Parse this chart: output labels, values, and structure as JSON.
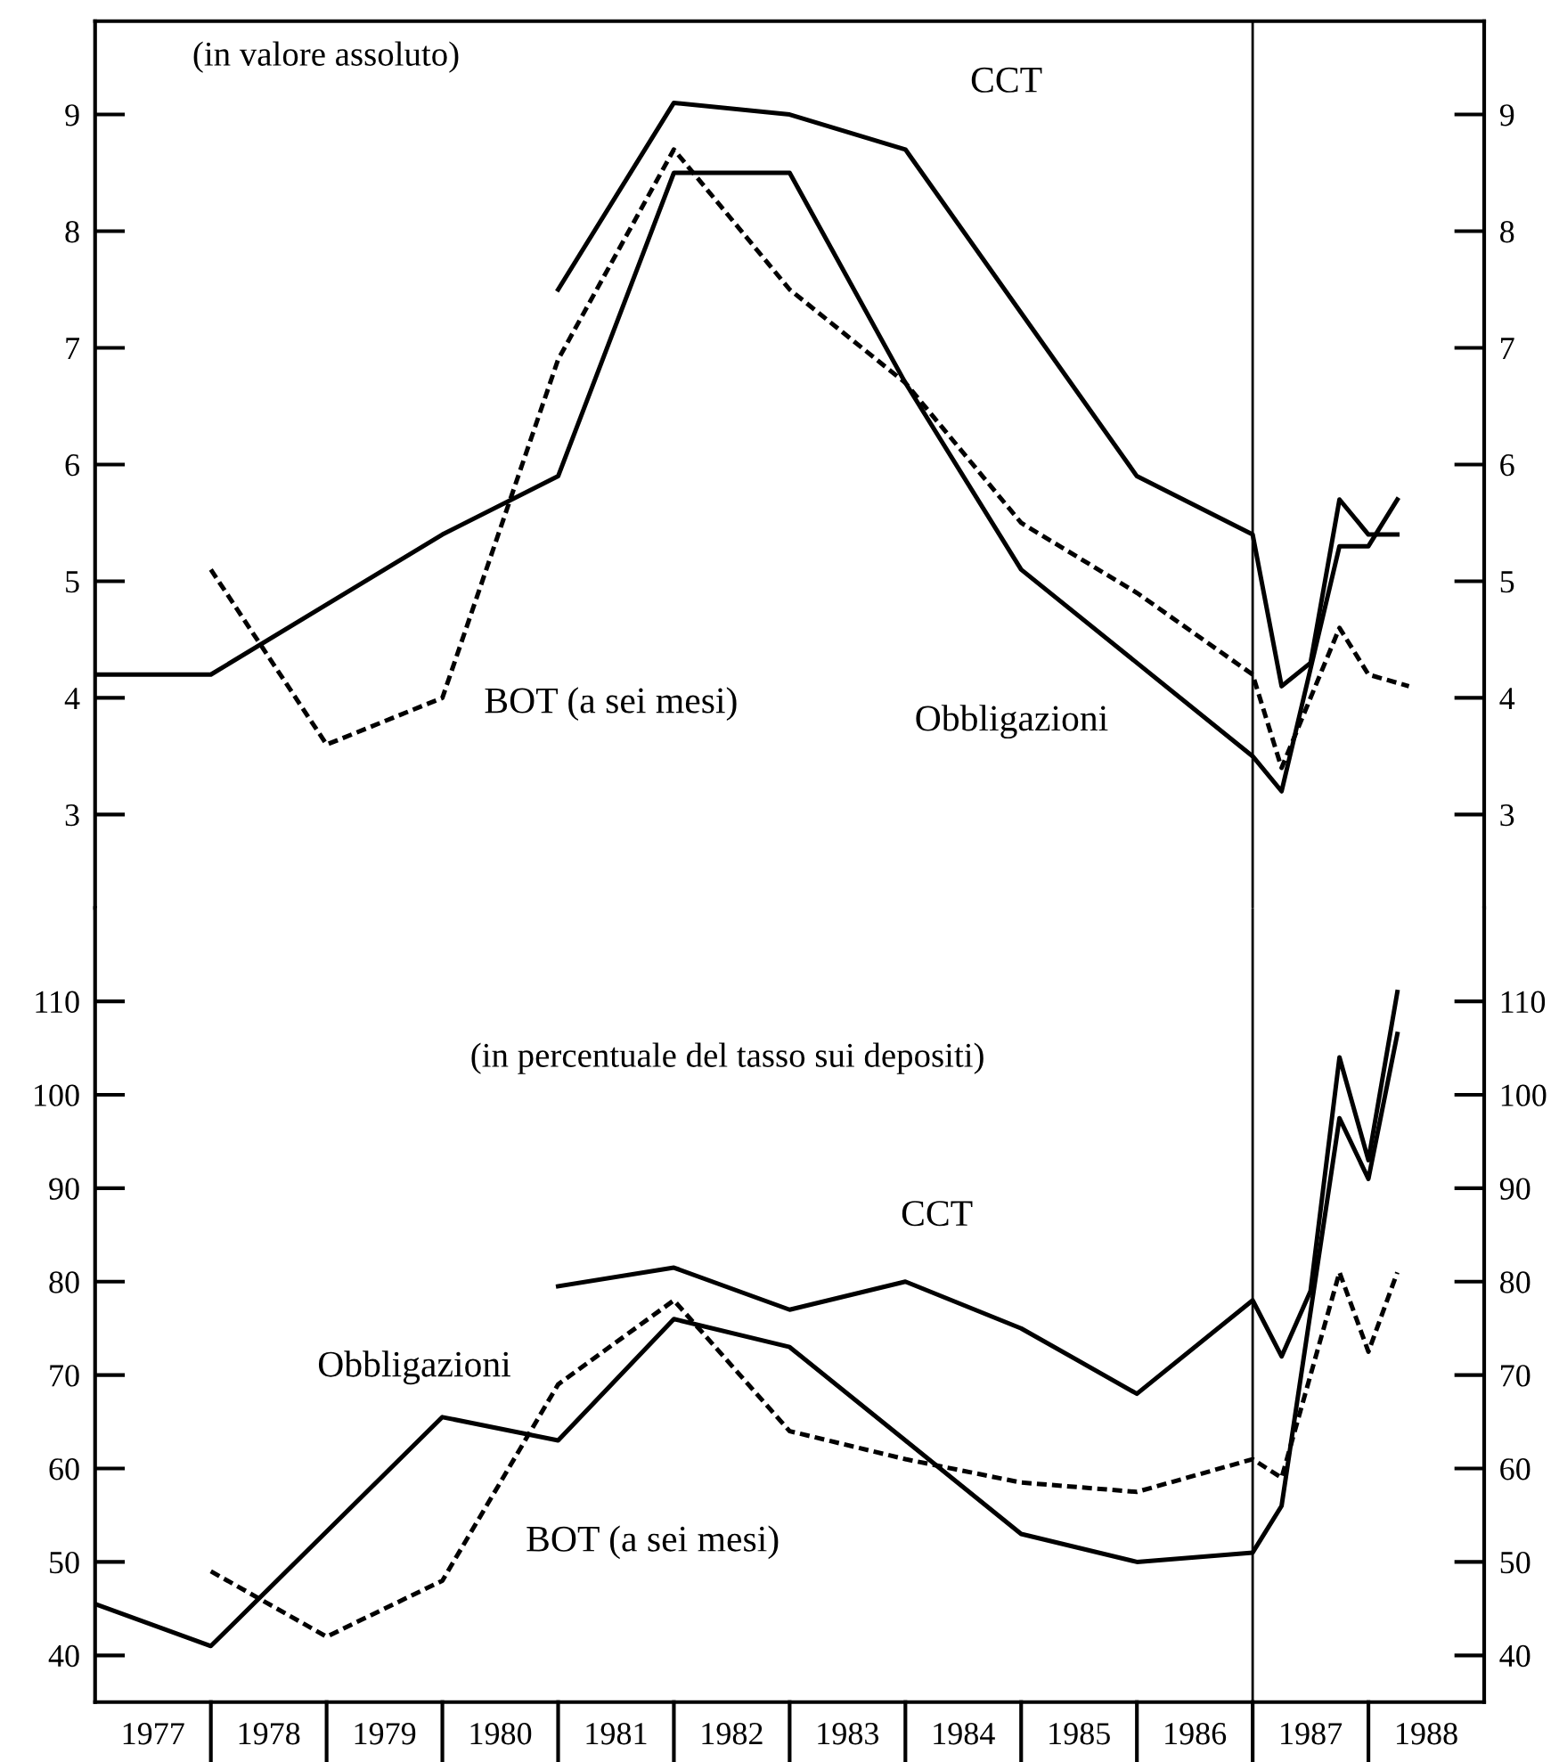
{
  "chart_data": [
    {
      "type": "line",
      "title": "(in valore assoluto)",
      "xlim": [
        1977,
        1989
      ],
      "ylim": [
        2.2,
        9.8
      ],
      "yticks": [
        3,
        4,
        5,
        6,
        7,
        8,
        9
      ],
      "y2lim": [
        2.2,
        9.8
      ],
      "y2ticks": [
        3,
        4,
        5,
        6,
        7,
        8,
        9
      ],
      "tick_labels": "y",
      "grid": false,
      "legend": false,
      "ref_lines": [
        {
          "axis": "x",
          "value": 1987,
          "color": "#000000",
          "line_style": "solid"
        }
      ],
      "series": [
        {
          "name": "CCT",
          "color": "#000000",
          "line_style": "solid",
          "x": [
            1981,
            1982,
            1983,
            1984,
            1985,
            1986,
            1987,
            1987.25,
            1987.5,
            1987.75,
            1988,
            1988.25
          ],
          "values": [
            7.5,
            9.1,
            9.0,
            8.7,
            7.3,
            5.9,
            5.4,
            4.1,
            4.3,
            5.7,
            5.4,
            5.4
          ]
        },
        {
          "name": "Obbligazioni",
          "color": "#000000",
          "line_style": "solid",
          "x": [
            1977,
            1978,
            1979,
            1980,
            1981,
            1982,
            1983,
            1984,
            1985,
            1986,
            1987,
            1987.25,
            1987.75,
            1988,
            1988.25
          ],
          "values": [
            4.2,
            4.2,
            4.8,
            5.4,
            5.9,
            8.5,
            8.5,
            6.7,
            5.1,
            4.3,
            3.5,
            3.2,
            5.3,
            5.3,
            5.7
          ]
        },
        {
          "name": "BOT (a sei mesi)",
          "color": "#000000",
          "line_style": "dashed",
          "x": [
            1978,
            1979,
            1980,
            1981,
            1982,
            1983,
            1984,
            1985,
            1986,
            1987,
            1987.25,
            1987.75,
            1988,
            1988.35
          ],
          "values": [
            5.1,
            3.6,
            4.0,
            6.9,
            8.7,
            7.5,
            6.7,
            5.5,
            4.9,
            4.2,
            3.4,
            4.6,
            4.2,
            4.1
          ]
        }
      ]
    },
    {
      "type": "line",
      "title": "(in percentuale del tasso sui depositi)",
      "xlim": [
        1977,
        1989
      ],
      "ylim": [
        35,
        120
      ],
      "yticks": [
        40,
        50,
        60,
        70,
        80,
        90,
        100,
        110
      ],
      "y2lim": [
        35,
        120
      ],
      "y2ticks": [
        40,
        50,
        60,
        70,
        80,
        90,
        100,
        110
      ],
      "grid": false,
      "legend": false,
      "xticks": [
        {
          "value": 1977.5,
          "label": "1977"
        },
        {
          "value": 1978.5,
          "label": "1978"
        },
        {
          "value": 1979.5,
          "label": "1979"
        },
        {
          "value": 1980.5,
          "label": "1980"
        },
        {
          "value": 1981.5,
          "label": "1981"
        },
        {
          "value": 1982.5,
          "label": "1982"
        },
        {
          "value": 1983.5,
          "label": "1983"
        },
        {
          "value": 1984.5,
          "label": "1984"
        },
        {
          "value": 1985.5,
          "label": "1985"
        },
        {
          "value": 1986.5,
          "label": "1986"
        },
        {
          "value": 1987.5,
          "label": "1987"
        },
        {
          "value": 1988.5,
          "label": "1988"
        }
      ],
      "ref_lines": [
        {
          "axis": "x",
          "value": 1987,
          "color": "#000000",
          "line_style": "solid"
        }
      ],
      "series": [
        {
          "name": "CCT",
          "color": "#000000",
          "line_style": "solid",
          "x": [
            1981,
            1982,
            1983,
            1984,
            1985,
            1986,
            1987,
            1987.25,
            1987.5,
            1987.75,
            1988,
            1988.25
          ],
          "values": [
            79.5,
            81.5,
            77,
            80,
            75,
            68,
            78,
            72,
            79,
            104,
            93,
            111
          ]
        },
        {
          "name": "Obbligazioni",
          "color": "#000000",
          "line_style": "solid",
          "x": [
            1977,
            1978,
            1980,
            1981,
            1982,
            1983,
            1984,
            1985,
            1986,
            1987,
            1987.25,
            1987.75,
            1988,
            1988.25
          ],
          "values": [
            45.5,
            41,
            65.5,
            63,
            76,
            73,
            63,
            53,
            50,
            51,
            56,
            97.5,
            91,
            106.5
          ]
        },
        {
          "name": "BOT (a sei mesi)",
          "color": "#000000",
          "line_style": "dashed",
          "x": [
            1978,
            1979,
            1980,
            1981,
            1982,
            1983,
            1984,
            1985,
            1986,
            1987,
            1987.25,
            1987.75,
            1988,
            1988.25
          ],
          "values": [
            49,
            42,
            48,
            69,
            78,
            64,
            61,
            58.5,
            57.5,
            61,
            59,
            81,
            72.5,
            81
          ]
        }
      ]
    }
  ]
}
